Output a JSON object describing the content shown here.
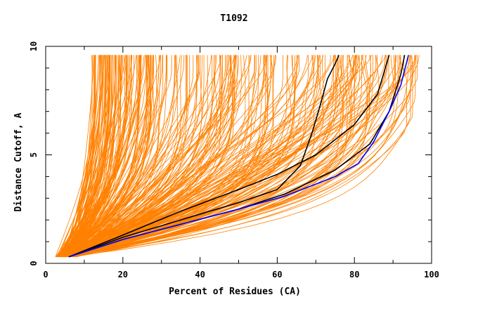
{
  "chart_data": {
    "type": "line",
    "title": "T1092",
    "xlabel": "Percent of Residues (CA)",
    "ylabel": "Distance Cutoff, A",
    "xlim": [
      0,
      100
    ],
    "ylim": [
      0,
      10
    ],
    "x_ticks": [
      0,
      20,
      40,
      60,
      80,
      100
    ],
    "y_ticks": [
      0,
      5,
      10
    ],
    "grid": false,
    "legend": "none",
    "colors": {
      "background": "#ffffff",
      "models": "#ff8000",
      "highlight_black": "#000000",
      "highlight_blue": "#0000ff"
    },
    "background_models": {
      "color": "#ff8000",
      "count": 300,
      "y_start": 0.3,
      "y_end": 9.6,
      "x_start_range": [
        2.5,
        7
      ],
      "x_end_range": [
        12,
        98
      ]
    },
    "series": [
      {
        "color": "#000000",
        "points": [
          [
            6,
            0.3
          ],
          [
            20,
            1.2
          ],
          [
            35,
            2.0
          ],
          [
            50,
            2.8
          ],
          [
            60,
            3.4
          ],
          [
            66,
            4.5
          ],
          [
            69,
            6.0
          ],
          [
            71,
            7.2
          ],
          [
            73,
            8.5
          ],
          [
            75,
            9.2
          ],
          [
            76,
            9.6
          ]
        ]
      },
      {
        "color": "#000000",
        "points": [
          [
            6,
            0.3
          ],
          [
            20,
            1.3
          ],
          [
            35,
            2.4
          ],
          [
            50,
            3.4
          ],
          [
            60,
            4.1
          ],
          [
            70,
            5.0
          ],
          [
            80,
            6.4
          ],
          [
            86,
            7.8
          ],
          [
            88,
            9.0
          ],
          [
            89,
            9.6
          ]
        ]
      },
      {
        "color": "#000000",
        "points": [
          [
            6,
            0.3
          ],
          [
            20,
            1.1
          ],
          [
            35,
            1.8
          ],
          [
            50,
            2.5
          ],
          [
            62,
            3.2
          ],
          [
            75,
            4.3
          ],
          [
            84,
            5.5
          ],
          [
            89,
            7.0
          ],
          [
            92,
            8.7
          ],
          [
            93,
            9.6
          ]
        ]
      },
      {
        "color": "#0000ff",
        "points": [
          [
            6,
            0.3
          ],
          [
            20,
            1.1
          ],
          [
            35,
            1.8
          ],
          [
            50,
            2.5
          ],
          [
            62,
            3.1
          ],
          [
            75,
            4.0
          ],
          [
            81,
            4.6
          ],
          [
            85,
            5.6
          ],
          [
            89,
            7.0
          ],
          [
            92,
            8.2
          ],
          [
            94,
            9.6
          ]
        ]
      }
    ]
  }
}
